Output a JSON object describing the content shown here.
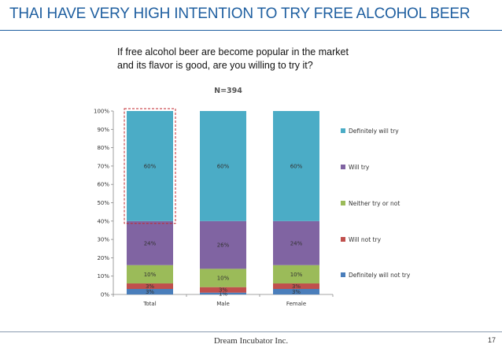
{
  "slide": {
    "title": "THAI HAVE VERY HIGH INTENTION TO TRY FREE ALCOHOL BEER",
    "question_line1": "If free alcohol beer are become popular in the market",
    "question_line2": "and its flavor is good, are you willing to try it?",
    "footer_company": "Dream Incubator Inc.",
    "page_number": "17"
  },
  "chart_data": {
    "type": "bar",
    "stacked": true,
    "annotation": "N=394",
    "categories": [
      "Total",
      "Male",
      "Female"
    ],
    "yticks": [
      "0%",
      "10%",
      "20%",
      "30%",
      "40%",
      "50%",
      "60%",
      "70%",
      "80%",
      "90%",
      "100%"
    ],
    "ylim": [
      0,
      100
    ],
    "legend_position": "right",
    "highlight_category": "Total",
    "series": [
      {
        "name": "Definitely will not try",
        "color": "#4a7ebb",
        "values": [
          3,
          1,
          3
        ],
        "labels": [
          "3%",
          "1%",
          "3%"
        ]
      },
      {
        "name": "Will not try",
        "color": "#c0504d",
        "values": [
          3,
          3,
          3
        ],
        "labels": [
          "3%",
          "3%",
          "3%"
        ]
      },
      {
        "name": "Neither try or not",
        "color": "#9bbb59",
        "values": [
          10,
          10,
          10
        ],
        "labels": [
          "10%",
          "10%",
          "10%"
        ]
      },
      {
        "name": "Will try",
        "color": "#8064a2",
        "values": [
          24,
          26,
          24
        ],
        "labels": [
          "24%",
          "26%",
          "24%"
        ]
      },
      {
        "name": "Definitely will try",
        "color": "#4bacc6",
        "values": [
          60,
          60,
          60
        ],
        "labels": [
          "60%",
          "60%",
          "60%"
        ]
      }
    ]
  }
}
